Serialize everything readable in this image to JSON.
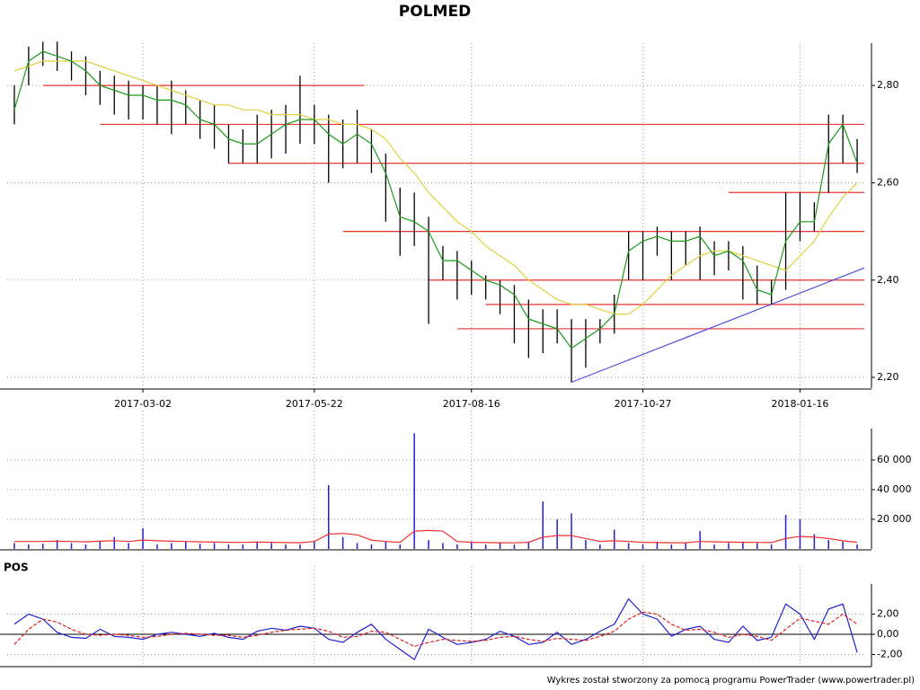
{
  "title": "POLMED",
  "footer": "Wykres został stworzony za pomocą programu PowerTrader (www.powertrader.pl)",
  "chart_data": [
    {
      "type": "ohlc",
      "categories": [
        null,
        null,
        null,
        null,
        null,
        null,
        null,
        null,
        null,
        "2017-03-02",
        null,
        null,
        null,
        null,
        null,
        null,
        null,
        null,
        null,
        null,
        null,
        "2017-05-22",
        null,
        null,
        null,
        null,
        null,
        null,
        null,
        null,
        null,
        null,
        "2017-08-16",
        null,
        null,
        null,
        null,
        null,
        null,
        null,
        null,
        null,
        null,
        null,
        "2017-10-27",
        null,
        null,
        null,
        null,
        null,
        null,
        null,
        null,
        null,
        null,
        "2018-01-16",
        null,
        null,
        null,
        null
      ],
      "high": [
        2.8,
        2.88,
        2.89,
        2.89,
        2.87,
        2.86,
        2.83,
        2.82,
        2.81,
        2.8,
        2.8,
        2.81,
        2.79,
        2.77,
        2.76,
        2.72,
        2.71,
        2.74,
        2.75,
        2.76,
        2.82,
        2.76,
        2.74,
        2.73,
        2.75,
        2.71,
        2.66,
        2.59,
        2.58,
        2.53,
        2.47,
        2.46,
        2.44,
        2.41,
        2.4,
        2.39,
        2.36,
        2.34,
        2.34,
        2.32,
        2.32,
        2.32,
        2.37,
        2.5,
        2.5,
        2.51,
        2.5,
        2.5,
        2.51,
        2.48,
        2.48,
        2.47,
        2.43,
        2.4,
        2.58,
        2.58,
        2.56,
        2.74,
        2.74,
        2.69
      ],
      "low": [
        2.72,
        2.8,
        2.84,
        2.83,
        2.81,
        2.78,
        2.76,
        2.74,
        2.73,
        2.73,
        2.72,
        2.7,
        2.72,
        2.69,
        2.67,
        2.64,
        2.64,
        2.64,
        2.65,
        2.66,
        2.68,
        2.68,
        2.6,
        2.63,
        2.64,
        2.62,
        2.52,
        2.45,
        2.47,
        2.31,
        2.4,
        2.36,
        2.37,
        2.36,
        2.33,
        2.27,
        2.24,
        2.25,
        2.27,
        2.19,
        2.22,
        2.27,
        2.29,
        2.4,
        2.4,
        2.45,
        2.4,
        2.43,
        2.4,
        2.41,
        2.42,
        2.36,
        2.35,
        2.35,
        2.38,
        2.48,
        2.5,
        2.58,
        2.64,
        2.62
      ],
      "close": [
        2.75,
        2.85,
        2.87,
        2.86,
        2.85,
        2.83,
        2.8,
        2.79,
        2.78,
        2.78,
        2.77,
        2.77,
        2.76,
        2.73,
        2.72,
        2.69,
        2.68,
        2.68,
        2.7,
        2.72,
        2.73,
        2.73,
        2.7,
        2.68,
        2.7,
        2.68,
        2.62,
        2.53,
        2.52,
        2.5,
        2.44,
        2.44,
        2.42,
        2.4,
        2.39,
        2.37,
        2.32,
        2.31,
        2.3,
        2.26,
        2.28,
        2.3,
        2.33,
        2.46,
        2.48,
        2.49,
        2.48,
        2.48,
        2.49,
        2.45,
        2.46,
        2.44,
        2.38,
        2.37,
        2.48,
        2.52,
        2.52,
        2.68,
        2.72,
        2.64
      ],
      "close_color": "#1a9a1a",
      "ma": [
        2.83,
        2.84,
        2.85,
        2.85,
        2.85,
        2.85,
        2.84,
        2.83,
        2.82,
        2.81,
        2.8,
        2.79,
        2.78,
        2.77,
        2.76,
        2.76,
        2.75,
        2.75,
        2.74,
        2.74,
        2.74,
        2.73,
        2.73,
        2.72,
        2.72,
        2.71,
        2.69,
        2.65,
        2.62,
        2.58,
        2.55,
        2.52,
        2.5,
        2.47,
        2.45,
        2.43,
        2.4,
        2.38,
        2.36,
        2.35,
        2.35,
        2.34,
        2.33,
        2.33,
        2.35,
        2.38,
        2.41,
        2.43,
        2.45,
        2.46,
        2.46,
        2.45,
        2.44,
        2.43,
        2.42,
        2.45,
        2.48,
        2.53,
        2.57,
        2.6
      ],
      "ma_color": "#e0d040",
      "bar_color": "#000000",
      "hlines": [
        {
          "value": 2.8,
          "from": 2,
          "to": 24
        },
        {
          "value": 2.72,
          "from": 6,
          "to": 59
        },
        {
          "value": 2.64,
          "from": 15,
          "to": 59
        },
        {
          "value": 2.58,
          "from": 50,
          "to": 59
        },
        {
          "value": 2.5,
          "from": 23,
          "to": 59
        },
        {
          "value": 2.4,
          "from": 29,
          "to": 59
        },
        {
          "value": 2.35,
          "from": 33,
          "to": 59
        },
        {
          "value": 2.3,
          "from": 31,
          "to": 59
        }
      ],
      "hline_color": "#ee3030",
      "trendline": {
        "x": [
          39,
          59
        ],
        "values": [
          2.19,
          2.425
        ],
        "color": "#5050e0"
      },
      "ylim": [
        2.178,
        2.887
      ],
      "yticks": [
        {
          "value": 2.2,
          "label": "2,20"
        },
        {
          "value": 2.4,
          "label": "2,40"
        },
        {
          "value": 2.6,
          "label": "2,60"
        },
        {
          "value": 2.8,
          "label": "2,80"
        }
      ],
      "grid": true
    },
    {
      "type": "bar",
      "values": [
        4000,
        3000,
        3500,
        6000,
        4000,
        3000,
        5000,
        8000,
        4000,
        14000,
        3000,
        4000,
        5000,
        3500,
        4000,
        3000,
        3000,
        5000,
        4000,
        3000,
        3000,
        5000,
        43000,
        8000,
        4000,
        3000,
        5000,
        3000,
        78000,
        6000,
        4000,
        3000,
        5000,
        3000,
        4000,
        3000,
        5000,
        32000,
        20000,
        24000,
        6000,
        3000,
        13000,
        4000,
        3000,
        5000,
        3000,
        4000,
        12000,
        3000,
        4000,
        5000,
        4000,
        3000,
        23000,
        20000,
        10000,
        6000,
        5000,
        3000
      ],
      "color": "#2020d0",
      "ma": [
        5000,
        5000,
        5000,
        5200,
        5000,
        4800,
        5200,
        5600,
        5000,
        6000,
        5500,
        5200,
        5000,
        4800,
        4600,
        4500,
        4400,
        4600,
        4500,
        4300,
        4200,
        5000,
        10000,
        10500,
        9500,
        6000,
        5000,
        4500,
        12000,
        12500,
        12000,
        5000,
        4500,
        4300,
        4200,
        4100,
        4500,
        8000,
        9000,
        9000,
        7000,
        5000,
        5500,
        5000,
        4500,
        4300,
        4200,
        4200,
        5000,
        4800,
        4600,
        4500,
        4400,
        4300,
        7000,
        8500,
        8000,
        7000,
        5500,
        4500
      ],
      "ma_color": "#ee3030",
      "ylim": [
        0,
        81200
      ],
      "yticks": [
        {
          "value": 20000,
          "label": "20 000"
        },
        {
          "value": 40000,
          "label": "40 000"
        },
        {
          "value": 60000,
          "label": "60 000"
        }
      ],
      "grid": true
    },
    {
      "type": "line",
      "title": "POS",
      "series": [
        {
          "values": [
            1.0,
            2.0,
            1.5,
            0.2,
            -0.3,
            -0.4,
            0.5,
            -0.2,
            -0.3,
            -0.5,
            0.0,
            0.2,
            0.0,
            -0.2,
            0.1,
            -0.3,
            -0.5,
            0.3,
            0.6,
            0.4,
            0.8,
            0.6,
            -0.5,
            -0.8,
            0.2,
            1.0,
            -0.5,
            -1.5,
            -2.5,
            0.5,
            -0.3,
            -1.0,
            -0.8,
            -0.5,
            0.3,
            -0.2,
            -1.0,
            -0.8,
            0.2,
            -1.0,
            -0.5,
            0.3,
            1.0,
            3.5,
            2.0,
            1.5,
            -0.2,
            0.5,
            0.8,
            -0.5,
            -0.8,
            0.8,
            -0.6,
            -0.3,
            3.0,
            2.0,
            -0.5,
            2.5,
            3.0,
            -1.8
          ],
          "color": "#2020d0"
        },
        {
          "values": [
            -1.0,
            0.5,
            1.5,
            1.2,
            0.5,
            0.0,
            -0.1,
            0.0,
            -0.1,
            -0.3,
            -0.2,
            0.0,
            0.1,
            0.0,
            -0.1,
            -0.1,
            -0.3,
            -0.1,
            0.2,
            0.4,
            0.5,
            0.6,
            0.3,
            -0.3,
            -0.2,
            0.3,
            0.2,
            -0.5,
            -1.2,
            -0.8,
            -0.5,
            -0.6,
            -0.7,
            -0.6,
            -0.3,
            -0.2,
            -0.5,
            -0.7,
            -0.4,
            -0.5,
            -0.6,
            -0.2,
            0.3,
            1.5,
            2.2,
            2.0,
            1.0,
            0.4,
            0.5,
            0.2,
            -0.3,
            0.0,
            -0.2,
            -0.6,
            0.5,
            1.6,
            1.3,
            1.0,
            2.0,
            1.0
          ],
          "color": "#e02020",
          "dashed": true
        }
      ],
      "ylim": [
        -3.2,
        4.98
      ],
      "yticks": [
        {
          "value": -2,
          "label": "-2,00"
        },
        {
          "value": 0,
          "label": "0,00"
        },
        {
          "value": 2,
          "label": "2,00"
        }
      ],
      "zero_line": true,
      "grid": true
    }
  ]
}
